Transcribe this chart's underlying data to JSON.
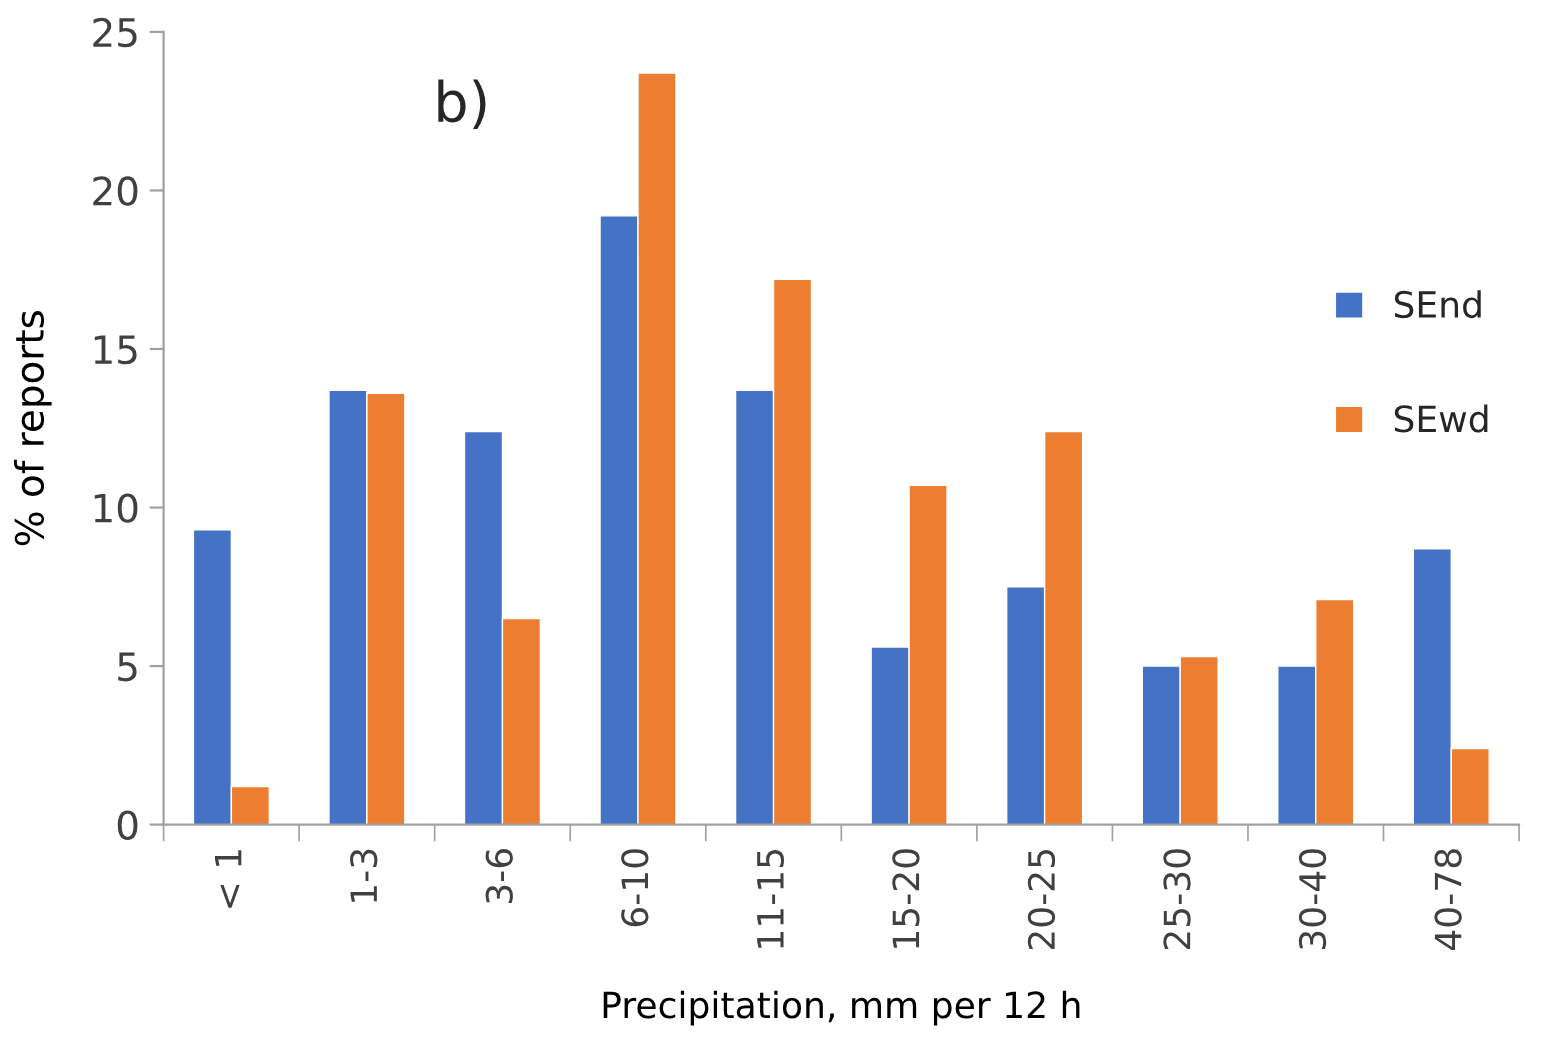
{
  "chart_data": {
    "type": "bar",
    "xlabel": "Precipitation, mm per 12 h",
    "ylabel": "% of reports",
    "annotations": [
      "b)"
    ],
    "categories": [
      "< 1",
      "1-3",
      "3-6",
      "6-10",
      "11-15",
      "15-20",
      "20-25",
      "25-30",
      "30-40",
      "40-78"
    ],
    "series": [
      {
        "name": "SEnd",
        "color": "#4472c4",
        "values": [
          9.3,
          13.7,
          12.4,
          19.2,
          13.7,
          5.6,
          7.5,
          5.0,
          5.0,
          8.7
        ]
      },
      {
        "name": "SEwd",
        "color": "#ed7d31",
        "values": [
          1.2,
          13.6,
          6.5,
          23.7,
          17.2,
          10.7,
          12.4,
          5.3,
          7.1,
          2.4
        ]
      }
    ],
    "ylim": [
      0,
      25
    ],
    "yticks": [
      0,
      5,
      10,
      15,
      20,
      25
    ],
    "grid": false,
    "legend": "right"
  }
}
